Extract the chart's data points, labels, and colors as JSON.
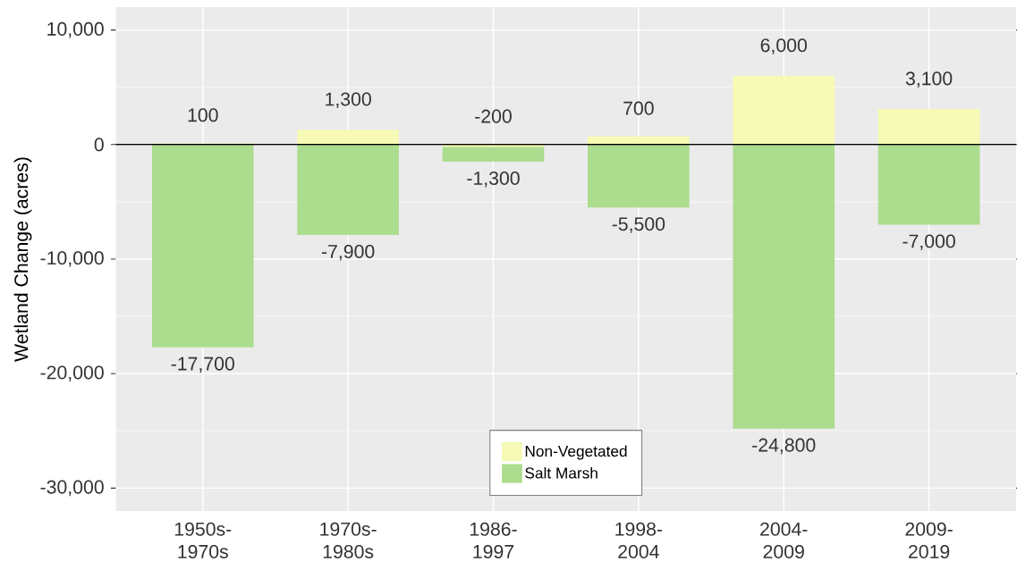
{
  "chart_data": {
    "type": "bar",
    "ylabel": "Wetland Change (acres)",
    "categories": [
      "1950s-1970s",
      "1970s-1980s",
      "1986-1997",
      "1998-2004",
      "2004-2009",
      "2009-2019"
    ],
    "stacked": true,
    "series": [
      {
        "name": "Non-Vegetated",
        "color": "#f6fab4",
        "values": [
          100,
          1300,
          -200,
          700,
          6000,
          3100
        ],
        "value_labels": [
          "100",
          "1,300",
          "-200",
          "700",
          "6,000",
          "3,100"
        ]
      },
      {
        "name": "Salt Marsh",
        "color": "#acdd8e",
        "values": [
          -17700,
          -7900,
          -1300,
          -5500,
          -24800,
          -7000
        ],
        "value_labels": [
          "-17,700",
          "-7,900",
          "-1,300",
          "-5,500",
          "-24,800",
          "-7,000"
        ]
      }
    ],
    "ylim": [
      -32000,
      12000
    ],
    "yticks": [
      {
        "value": -30000,
        "label": "-30,000"
      },
      {
        "value": -20000,
        "label": "-20,000"
      },
      {
        "value": -10000,
        "label": "-10,000"
      },
      0,
      {
        "value": 10000,
        "label": "10,000"
      }
    ],
    "ref_lines": [
      {
        "axis": "y",
        "value": 0,
        "color": "#000000"
      }
    ],
    "grid": true,
    "legend": "bottom"
  }
}
